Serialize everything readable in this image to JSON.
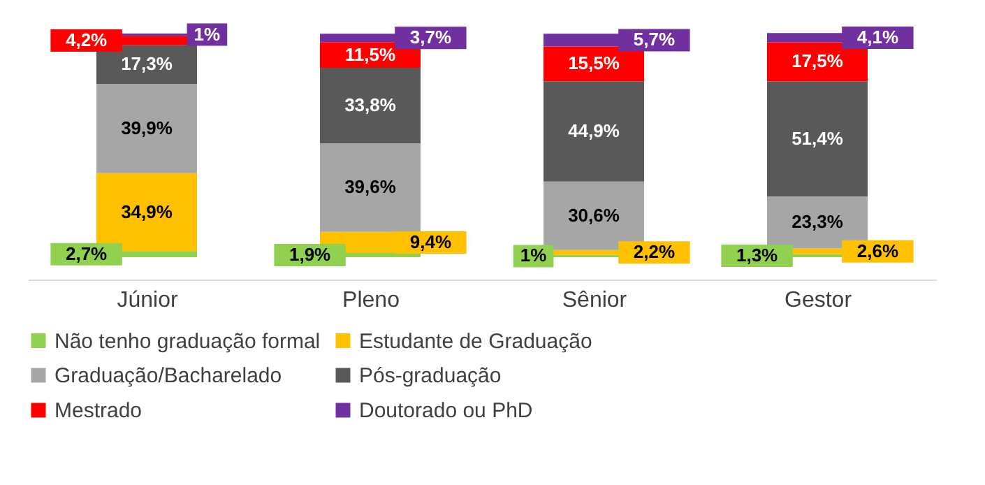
{
  "chart_data": {
    "type": "bar",
    "stacked": true,
    "legend": "bottom",
    "grid": false,
    "tick_labels": "x",
    "categories": [
      "Júnior",
      "Pleno",
      "Sênior",
      "Gestor"
    ],
    "series": [
      {
        "name": "Não tenho graduação formal",
        "color": "#92d050",
        "values": [
          2.7,
          1.9,
          1,
          1.3
        ],
        "value_labels": [
          "2,7%",
          "1,9%",
          "1%",
          "1,3%"
        ]
      },
      {
        "name": "Estudante de Graduação",
        "color": "#ffc000",
        "values": [
          34.9,
          9.4,
          2.2,
          2.6
        ],
        "value_labels": [
          "34,9%",
          "9,4%",
          "2,2%",
          "2,6%"
        ]
      },
      {
        "name": "Graduação/Bacharelado",
        "color": "#a6a6a6",
        "values": [
          39.9,
          39.6,
          30.6,
          23.3
        ],
        "value_labels": [
          "39,9%",
          "39,6%",
          "30,6%",
          "23,3%"
        ]
      },
      {
        "name": "Pós-graduação",
        "color": "#595959",
        "values": [
          17.3,
          33.8,
          44.9,
          51.4
        ],
        "value_labels": [
          "17,3%",
          "33,8%",
          "44,9%",
          "51,4%"
        ]
      },
      {
        "name": "Mestrado",
        "color": "#ff0000",
        "values": [
          4.2,
          11.5,
          15.5,
          17.5
        ],
        "value_labels": [
          "4,2%",
          "11,5%",
          "15,5%",
          "17,5%"
        ]
      },
      {
        "name": "Doutorado ou PhD",
        "color": "#7030a0",
        "values": [
          1,
          3.7,
          5.7,
          4.1
        ],
        "value_labels": [
          "1%",
          "3,7%",
          "5,7%",
          "4,1%"
        ]
      }
    ]
  }
}
